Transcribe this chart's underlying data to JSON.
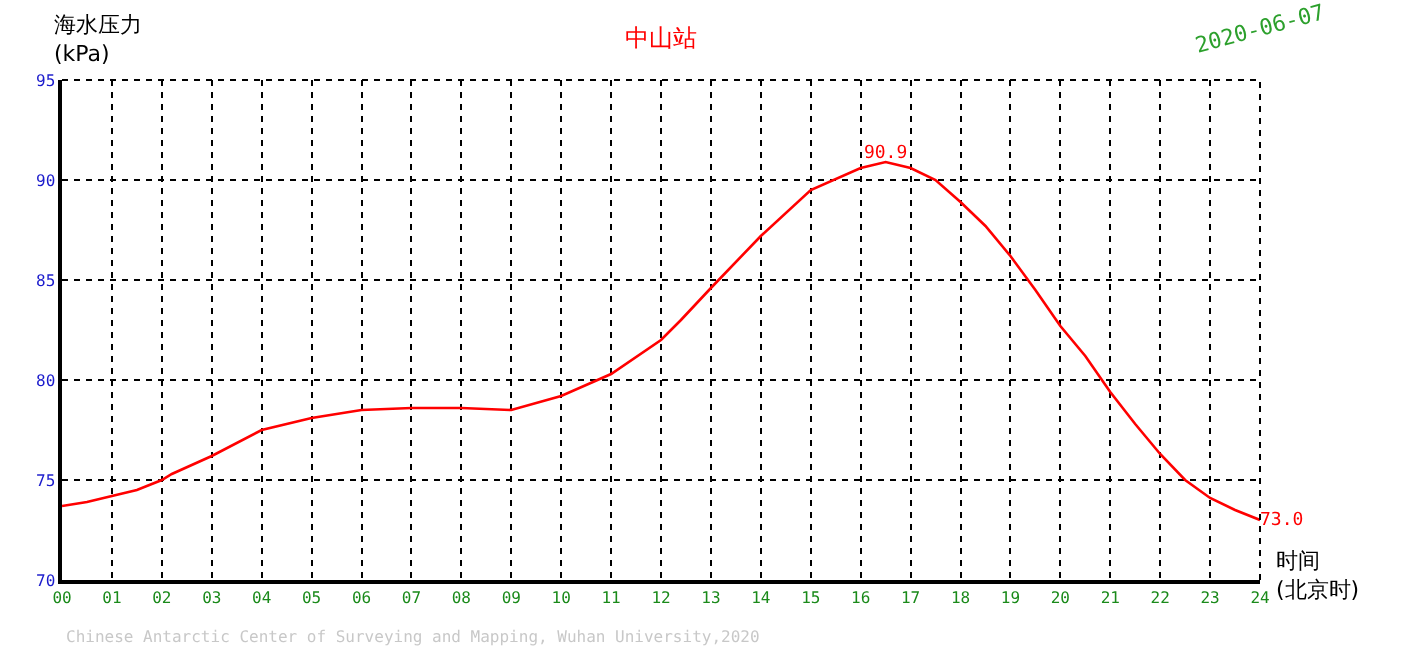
{
  "chart_data": {
    "type": "line",
    "title": "中山站",
    "ylabel": "海水压力\n(kPa)",
    "xlabel": "时间\n(北京时)",
    "annotations": [
      "2020-06-07",
      "Chinese Antarctic Center of Surveying and Mapping, Wuhan University,2020"
    ],
    "x": [
      0,
      0.5,
      1,
      1.5,
      2,
      2.2,
      3,
      4,
      5,
      6,
      7,
      8,
      9,
      10,
      11,
      12,
      12.4,
      13,
      14,
      15,
      16,
      16.5,
      17,
      17.5,
      18,
      18.5,
      19,
      19.5,
      20,
      20.5,
      21,
      21.5,
      22,
      22.5,
      23,
      23.5,
      24
    ],
    "series": [
      {
        "color": "#ff0000",
        "values": [
          73.7,
          73.9,
          74.2,
          74.5,
          75.0,
          75.3,
          76.2,
          77.5,
          78.1,
          78.5,
          78.6,
          78.6,
          78.5,
          79.2,
          80.3,
          82.0,
          83.0,
          84.6,
          87.2,
          89.5,
          90.6,
          90.9,
          90.6,
          90.0,
          88.9,
          87.7,
          86.2,
          84.5,
          82.7,
          81.2,
          79.4,
          77.8,
          76.3,
          75.0,
          74.1,
          73.5,
          73.0
        ],
        "value_labels": [
          null,
          null,
          null,
          null,
          null,
          null,
          null,
          null,
          null,
          null,
          null,
          null,
          null,
          null,
          null,
          null,
          null,
          null,
          null,
          null,
          null,
          "90.9",
          null,
          null,
          null,
          null,
          null,
          null,
          null,
          null,
          null,
          null,
          null,
          null,
          null,
          null,
          "73.0"
        ]
      }
    ],
    "xlim": [
      0,
      24
    ],
    "ylim": [
      70,
      95
    ],
    "xticks": [
      {
        "value": 0,
        "label": "00"
      },
      {
        "value": 1,
        "label": "01"
      },
      {
        "value": 2,
        "label": "02"
      },
      {
        "value": 3,
        "label": "03"
      },
      {
        "value": 4,
        "label": "04"
      },
      {
        "value": 5,
        "label": "05"
      },
      {
        "value": 6,
        "label": "06"
      },
      {
        "value": 7,
        "label": "07"
      },
      {
        "value": 8,
        "label": "08"
      },
      {
        "value": 9,
        "label": "09"
      },
      {
        "value": 10,
        "label": "10"
      },
      {
        "value": 11,
        "label": "11"
      },
      {
        "value": 12,
        "label": "12"
      },
      {
        "value": 13,
        "label": "13"
      },
      {
        "value": 14,
        "label": "14"
      },
      {
        "value": 15,
        "label": "15"
      },
      {
        "value": 16,
        "label": "16"
      },
      {
        "value": 17,
        "label": "17"
      },
      {
        "value": 18,
        "label": "18"
      },
      {
        "value": 19,
        "label": "19"
      },
      {
        "value": 20,
        "label": "20"
      },
      {
        "value": 21,
        "label": "21"
      },
      {
        "value": 22,
        "label": "22"
      },
      {
        "value": 23,
        "label": "23"
      },
      {
        "value": 24,
        "label": "24"
      }
    ],
    "yticks": [
      70,
      75,
      80,
      85,
      90,
      95
    ],
    "grid": true,
    "marker": "none",
    "line_style": "solid"
  }
}
